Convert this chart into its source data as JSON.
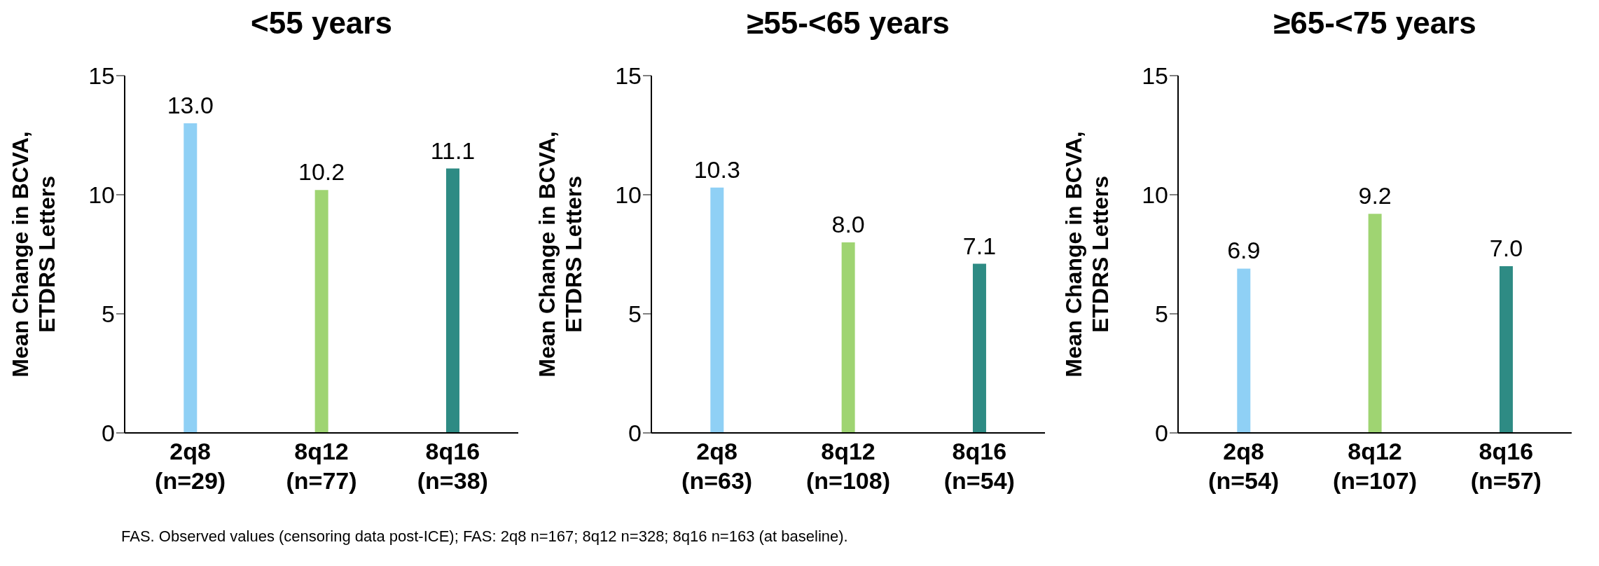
{
  "chart_data": [
    {
      "type": "bar",
      "title": "<55 years",
      "ylabel": "Mean Change in BCVA, ETDRS Letters",
      "categories": [
        "2q8 (n=29)",
        "8q12 (n=77)",
        "8q16 (n=38)"
      ],
      "values": [
        13.0,
        10.2,
        11.1
      ],
      "value_labels": [
        "13.0",
        "10.2",
        "11.1"
      ],
      "colors": [
        "#8fd0f5",
        "#9fd472",
        "#2e8b84"
      ],
      "ylim": [
        0,
        15
      ],
      "yticks": [
        0,
        5,
        10,
        15
      ],
      "grid": false,
      "legend": false,
      "annotations": [
        "FAS. Observed values (censoring data post-ICE); FAS: 2q8 n=167; 8q12 n=328; 8q16 n=163 (at baseline)."
      ]
    },
    {
      "type": "bar",
      "title": "≥55-<65 years",
      "ylabel": "Mean Change in BCVA, ETDRS Letters",
      "categories": [
        "2q8 (n=63)",
        "8q12 (n=108)",
        "8q16 (n=54)"
      ],
      "values": [
        10.3,
        8.0,
        7.1
      ],
      "value_labels": [
        "10.3",
        "8.0",
        "7.1"
      ],
      "colors": [
        "#8fd0f5",
        "#9fd472",
        "#2e8b84"
      ],
      "ylim": [
        0,
        15
      ],
      "yticks": [
        0,
        5,
        10,
        15
      ],
      "grid": false,
      "legend": false
    },
    {
      "type": "bar",
      "title": "≥65-<75 years",
      "ylabel": "Mean Change in BCVA, ETDRS Letters",
      "categories": [
        "2q8 (n=54)",
        "8q12 (n=107)",
        "8q16 (n=57)"
      ],
      "values": [
        6.9,
        9.2,
        7.0
      ],
      "value_labels": [
        "6.9",
        "9.2",
        "7.0"
      ],
      "colors": [
        "#8fd0f5",
        "#9fd472",
        "#2e8b84"
      ],
      "ylim": [
        0,
        15
      ],
      "yticks": [
        0,
        5,
        10,
        15
      ],
      "grid": false,
      "legend": false
    }
  ]
}
